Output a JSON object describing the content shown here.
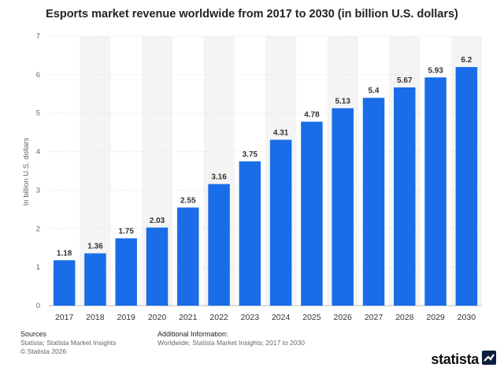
{
  "title": "Esports market revenue worldwide from 2017 to 2030 (in billion U.S. dollars)",
  "chart_data": {
    "type": "bar",
    "categories": [
      "2017",
      "2018",
      "2019",
      "2020",
      "2021",
      "2022",
      "2023",
      "2024",
      "2025",
      "2026",
      "2027",
      "2028",
      "2029",
      "2030"
    ],
    "values": [
      1.18,
      1.36,
      1.75,
      2.03,
      2.55,
      3.16,
      3.75,
      4.31,
      4.78,
      5.13,
      5.4,
      5.67,
      5.93,
      6.2
    ],
    "data_labels": [
      "1.18",
      "1.36",
      "1.75",
      "2.03",
      "2.55",
      "3.16",
      "3.75",
      "4.31",
      "4.78",
      "5.13",
      "5.4",
      "5.67",
      "5.93",
      "6.2"
    ],
    "ylabel": "In billion U.S. dollars",
    "ylim": [
      0,
      7
    ],
    "yticks": [
      0,
      1,
      2,
      3,
      4,
      5,
      6,
      7
    ],
    "bar_color": "#1a6de8",
    "grid": true,
    "alternating_band_color": "#f4f4f4"
  },
  "footer": {
    "sources_heading": "Sources",
    "sources_line": "Statista; Statista Market Insights",
    "copyright": "© Statista 2026",
    "additional_heading": "Additional Information:",
    "additional_line": "Worldwide; Statista Market Insights; 2017 to 2030"
  },
  "brand": {
    "name": "statista",
    "icon": "statista-logo-icon"
  }
}
